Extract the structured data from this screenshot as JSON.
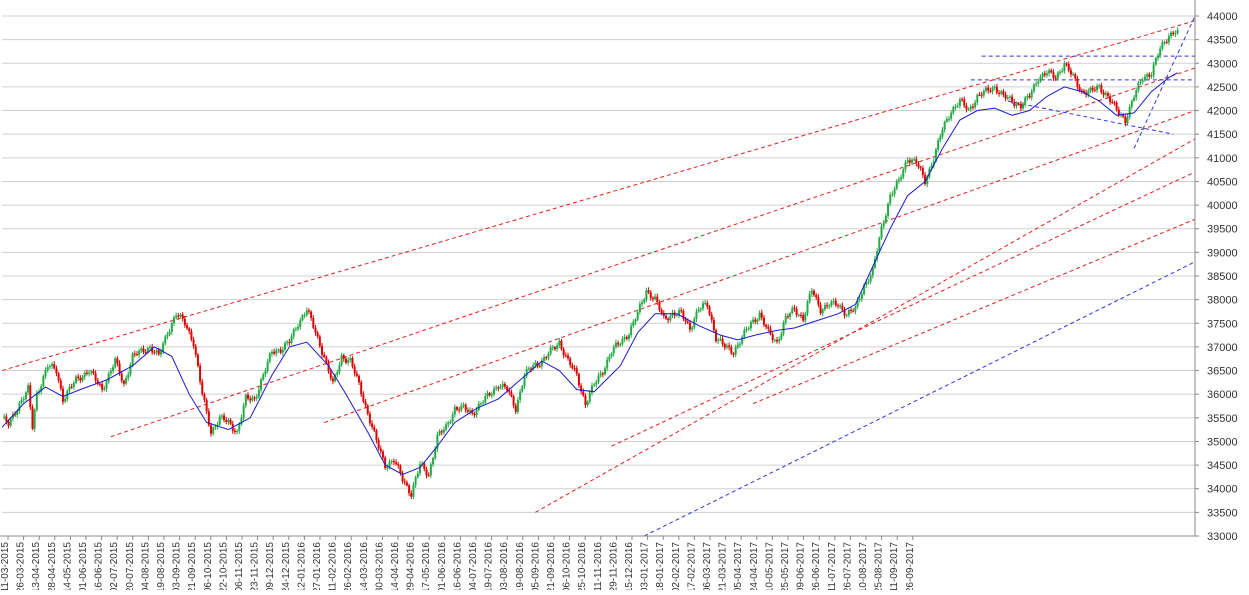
{
  "chart_data": {
    "type": "candlestick",
    "title": "",
    "xlabel": "",
    "ylabel": "",
    "ylim": [
      33000,
      44000
    ],
    "y_ticks": [
      33000,
      33500,
      34000,
      34500,
      35000,
      35500,
      36000,
      36500,
      37000,
      37500,
      38000,
      38500,
      39000,
      39500,
      40000,
      40500,
      41000,
      41500,
      42000,
      42500,
      43000,
      43500,
      44000
    ],
    "y_axis_side": "right",
    "grid": "horizontal",
    "x_tick_labels": [
      "11-03-2015",
      "26-03-2015",
      "13-04-2015",
      "28-04-2015",
      "14-05-2015",
      "01-06-2015",
      "16-06-2015",
      "02-07-2015",
      "20-07-2015",
      "04-08-2015",
      "19-08-2015",
      "03-09-2015",
      "21-09-2015",
      "06-10-2015",
      "22-10-2015",
      "06-11-2015",
      "23-11-2015",
      "09-12-2015",
      "24-12-2015",
      "12-01-2016",
      "27-01-2016",
      "11-02-2016",
      "26-02-2016",
      "14-03-2016",
      "30-03-2016",
      "14-04-2016",
      "29-04-2016",
      "17-05-2016",
      "01-06-2016",
      "16-06-2016",
      "04-07-2016",
      "19-07-2016",
      "03-08-2016",
      "19-08-2016",
      "05-09-2016",
      "21-09-2016",
      "06-10-2016",
      "25-10-2016",
      "11-11-2016",
      "29-11-2016",
      "15-12-2016",
      "03-01-2017",
      "18-01-2017",
      "02-02-2017",
      "17-02-2017",
      "06-03-2017",
      "21-03-2017",
      "05-04-2017",
      "24-04-2017",
      "10-05-2017",
      "25-05-2017",
      "09-06-2017",
      "26-06-2017",
      "11-07-2017",
      "26-07-2017",
      "10-08-2017",
      "25-08-2017",
      "11-09-2017",
      "26-09-2017"
    ],
    "anchors": [
      [
        0,
        35500
      ],
      [
        3,
        35350
      ],
      [
        8,
        35800
      ],
      [
        12,
        36100
      ],
      [
        14,
        35300
      ],
      [
        16,
        36000
      ],
      [
        21,
        36600
      ],
      [
        25,
        36500
      ],
      [
        28,
        35900
      ],
      [
        34,
        36300
      ],
      [
        40,
        36500
      ],
      [
        46,
        36100
      ],
      [
        52,
        36700
      ],
      [
        56,
        36200
      ],
      [
        60,
        36800
      ],
      [
        68,
        37000
      ],
      [
        72,
        36800
      ],
      [
        76,
        37300
      ],
      [
        80,
        37700
      ],
      [
        84,
        37500
      ],
      [
        88,
        37100
      ],
      [
        92,
        36000
      ],
      [
        96,
        35200
      ],
      [
        100,
        35500
      ],
      [
        104,
        35400
      ],
      [
        108,
        35200
      ],
      [
        112,
        35900
      ],
      [
        116,
        35900
      ],
      [
        120,
        36400
      ],
      [
        124,
        36900
      ],
      [
        128,
        36950
      ],
      [
        132,
        37100
      ],
      [
        136,
        37500
      ],
      [
        140,
        37800
      ],
      [
        144,
        37300
      ],
      [
        148,
        36800
      ],
      [
        152,
        36200
      ],
      [
        156,
        36800
      ],
      [
        160,
        36700
      ],
      [
        164,
        36200
      ],
      [
        168,
        35600
      ],
      [
        172,
        35000
      ],
      [
        176,
        34500
      ],
      [
        180,
        34600
      ],
      [
        184,
        34200
      ],
      [
        188,
        33900
      ],
      [
        192,
        34500
      ],
      [
        196,
        34300
      ],
      [
        200,
        35100
      ],
      [
        204,
        35300
      ],
      [
        208,
        35700
      ],
      [
        212,
        35700
      ],
      [
        216,
        35600
      ],
      [
        220,
        35800
      ],
      [
        224,
        36000
      ],
      [
        228,
        36200
      ],
      [
        232,
        36100
      ],
      [
        236,
        35700
      ],
      [
        240,
        36400
      ],
      [
        244,
        36600
      ],
      [
        248,
        36700
      ],
      [
        252,
        36900
      ],
      [
        256,
        37100
      ],
      [
        260,
        36700
      ],
      [
        264,
        36400
      ],
      [
        268,
        35800
      ],
      [
        272,
        36200
      ],
      [
        276,
        36500
      ],
      [
        280,
        36900
      ],
      [
        284,
        37100
      ],
      [
        288,
        37300
      ],
      [
        292,
        37700
      ],
      [
        296,
        38200
      ],
      [
        300,
        38000
      ],
      [
        304,
        37600
      ],
      [
        308,
        37700
      ],
      [
        312,
        37700
      ],
      [
        316,
        37400
      ],
      [
        320,
        37800
      ],
      [
        324,
        37900
      ],
      [
        328,
        37200
      ],
      [
        332,
        37000
      ],
      [
        336,
        36900
      ],
      [
        340,
        37200
      ],
      [
        344,
        37500
      ],
      [
        348,
        37700
      ],
      [
        352,
        37300
      ],
      [
        356,
        37100
      ],
      [
        360,
        37600
      ],
      [
        364,
        37800
      ],
      [
        368,
        37600
      ],
      [
        372,
        38200
      ],
      [
        376,
        37800
      ],
      [
        380,
        37900
      ],
      [
        384,
        37900
      ],
      [
        388,
        37700
      ],
      [
        392,
        37800
      ],
      [
        396,
        38300
      ],
      [
        400,
        38600
      ],
      [
        404,
        39500
      ],
      [
        408,
        40200
      ],
      [
        412,
        40500
      ],
      [
        416,
        41000
      ],
      [
        420,
        40900
      ],
      [
        424,
        40500
      ],
      [
        428,
        41000
      ],
      [
        432,
        41600
      ],
      [
        436,
        42000
      ],
      [
        440,
        42200
      ],
      [
        444,
        42000
      ],
      [
        448,
        42300
      ],
      [
        452,
        42400
      ],
      [
        456,
        42500
      ],
      [
        460,
        42300
      ],
      [
        464,
        42200
      ],
      [
        468,
        42100
      ],
      [
        472,
        42300
      ],
      [
        476,
        42700
      ],
      [
        480,
        42800
      ],
      [
        484,
        42700
      ],
      [
        488,
        43000
      ],
      [
        492,
        42700
      ],
      [
        496,
        42400
      ],
      [
        500,
        42400
      ],
      [
        504,
        42500
      ],
      [
        508,
        42300
      ],
      [
        512,
        42000
      ],
      [
        516,
        41800
      ],
      [
        520,
        42300
      ],
      [
        524,
        42700
      ],
      [
        528,
        42800
      ],
      [
        532,
        43300
      ],
      [
        536,
        43600
      ],
      [
        540,
        43700
      ]
    ],
    "moving_average": [
      [
        0,
        35300
      ],
      [
        10,
        35800
      ],
      [
        20,
        36150
      ],
      [
        28,
        35950
      ],
      [
        36,
        36100
      ],
      [
        48,
        36300
      ],
      [
        60,
        36600
      ],
      [
        70,
        37000
      ],
      [
        78,
        36800
      ],
      [
        86,
        36000
      ],
      [
        94,
        35400
      ],
      [
        104,
        35250
      ],
      [
        114,
        35500
      ],
      [
        124,
        36400
      ],
      [
        132,
        37000
      ],
      [
        140,
        37100
      ],
      [
        150,
        36600
      ],
      [
        158,
        36000
      ],
      [
        168,
        35200
      ],
      [
        176,
        34500
      ],
      [
        184,
        34300
      ],
      [
        192,
        34450
      ],
      [
        200,
        34900
      ],
      [
        208,
        35400
      ],
      [
        218,
        35700
      ],
      [
        228,
        35900
      ],
      [
        238,
        36300
      ],
      [
        248,
        36700
      ],
      [
        256,
        36500
      ],
      [
        264,
        36100
      ],
      [
        272,
        36050
      ],
      [
        284,
        36600
      ],
      [
        292,
        37300
      ],
      [
        300,
        37700
      ],
      [
        310,
        37700
      ],
      [
        320,
        37450
      ],
      [
        330,
        37250
      ],
      [
        338,
        37150
      ],
      [
        346,
        37250
      ],
      [
        356,
        37350
      ],
      [
        364,
        37400
      ],
      [
        374,
        37550
      ],
      [
        384,
        37700
      ],
      [
        392,
        37900
      ],
      [
        400,
        38700
      ],
      [
        408,
        39500
      ],
      [
        416,
        40200
      ],
      [
        424,
        40500
      ],
      [
        432,
        41200
      ],
      [
        440,
        41800
      ],
      [
        448,
        42000
      ],
      [
        456,
        42050
      ],
      [
        464,
        41900
      ],
      [
        472,
        42000
      ],
      [
        480,
        42300
      ],
      [
        488,
        42500
      ],
      [
        496,
        42400
      ],
      [
        504,
        42200
      ],
      [
        512,
        41900
      ],
      [
        520,
        41950
      ],
      [
        528,
        42400
      ],
      [
        536,
        42700
      ],
      [
        540,
        42800
      ]
    ],
    "trendlines": {
      "channel_red": [
        [
          0,
          36500,
          548,
          43900
        ],
        [
          50,
          35100,
          548,
          42900
        ],
        [
          148,
          35400,
          548,
          42000
        ],
        [
          245,
          33500,
          548,
          41400
        ],
        [
          280,
          34900,
          548,
          40700
        ],
        [
          345,
          35800,
          548,
          39700
        ]
      ],
      "long_blue": [
        [
          295,
          33000,
          548,
          38800
        ]
      ],
      "pattern_blue": [
        [
          450,
          43150,
          548,
          43150
        ],
        [
          445,
          42650,
          548,
          42650
        ],
        [
          462,
          42200,
          538,
          41500
        ],
        [
          520,
          41200,
          548,
          44000
        ]
      ]
    },
    "colors": {
      "up": "#22aa44",
      "down": "#dd0000",
      "moving_average": "#1a1acc",
      "channel_line": "#e02020",
      "trend_line": "#3333dd",
      "grid": "#d0d0d0"
    }
  }
}
